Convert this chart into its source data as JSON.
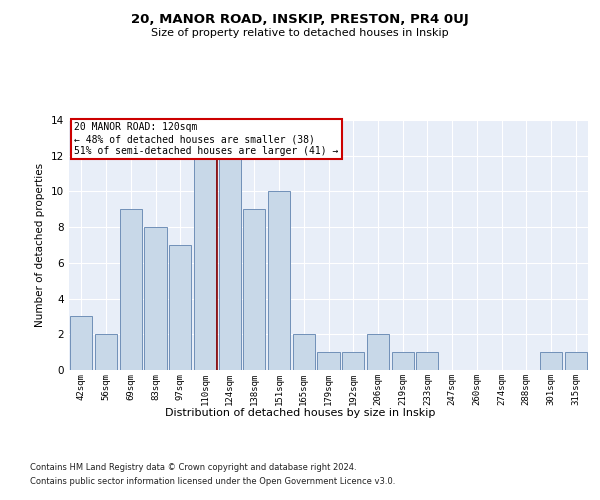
{
  "title": "20, MANOR ROAD, INSKIP, PRESTON, PR4 0UJ",
  "subtitle": "Size of property relative to detached houses in Inskip",
  "xlabel": "Distribution of detached houses by size in Inskip",
  "ylabel": "Number of detached properties",
  "footnote1": "Contains HM Land Registry data © Crown copyright and database right 2024.",
  "footnote2": "Contains public sector information licensed under the Open Government Licence v3.0.",
  "categories": [
    "42sqm",
    "56sqm",
    "69sqm",
    "83sqm",
    "97sqm",
    "110sqm",
    "124sqm",
    "138sqm",
    "151sqm",
    "165sqm",
    "179sqm",
    "192sqm",
    "206sqm",
    "219sqm",
    "233sqm",
    "247sqm",
    "260sqm",
    "274sqm",
    "288sqm",
    "301sqm",
    "315sqm"
  ],
  "values": [
    3,
    2,
    9,
    8,
    7,
    12,
    12,
    9,
    10,
    2,
    1,
    1,
    2,
    1,
    1,
    0,
    0,
    0,
    0,
    1,
    1
  ],
  "bar_color": "#c8d8e8",
  "bar_edge_color": "#7090b8",
  "highlight_index": 5,
  "highlight_line_color": "#8b0000",
  "ylim": [
    0,
    14
  ],
  "yticks": [
    0,
    2,
    4,
    6,
    8,
    10,
    12,
    14
  ],
  "bg_color": "#e8eef8",
  "annotation_text": "20 MANOR ROAD: 120sqm\n← 48% of detached houses are smaller (38)\n51% of semi-detached houses are larger (41) →",
  "annotation_box_edge": "#cc0000",
  "fig_bg_color": "#ffffff"
}
